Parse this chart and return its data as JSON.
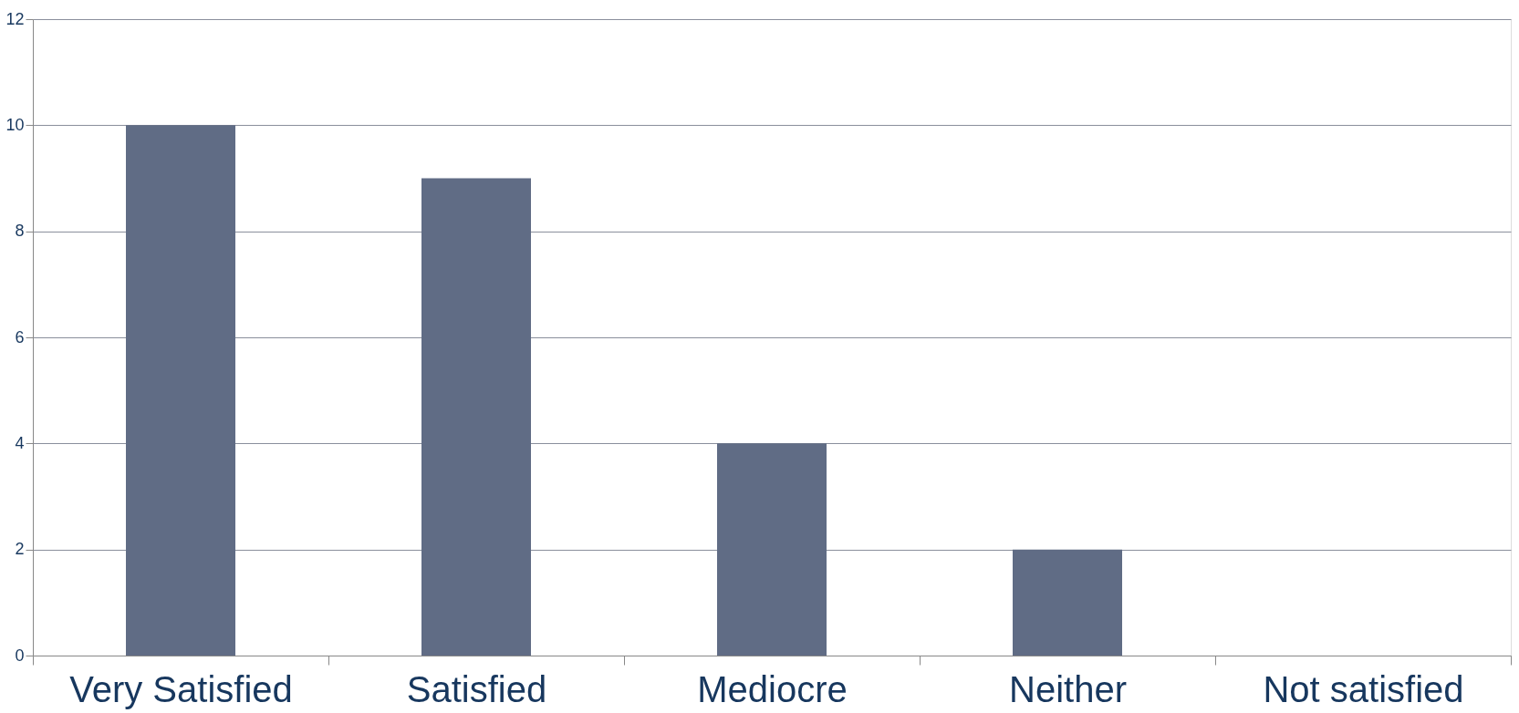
{
  "chart_data": {
    "type": "bar",
    "categories": [
      "Very Satisfied",
      "Satisfied",
      "Mediocre",
      "Neither",
      "Not satisfied"
    ],
    "values": [
      10,
      9,
      4,
      2,
      0
    ],
    "color": "#606c85",
    "ylim": [
      0,
      12
    ],
    "yticks": [
      0,
      2,
      4,
      6,
      8,
      10,
      12
    ],
    "grid": "y"
  }
}
